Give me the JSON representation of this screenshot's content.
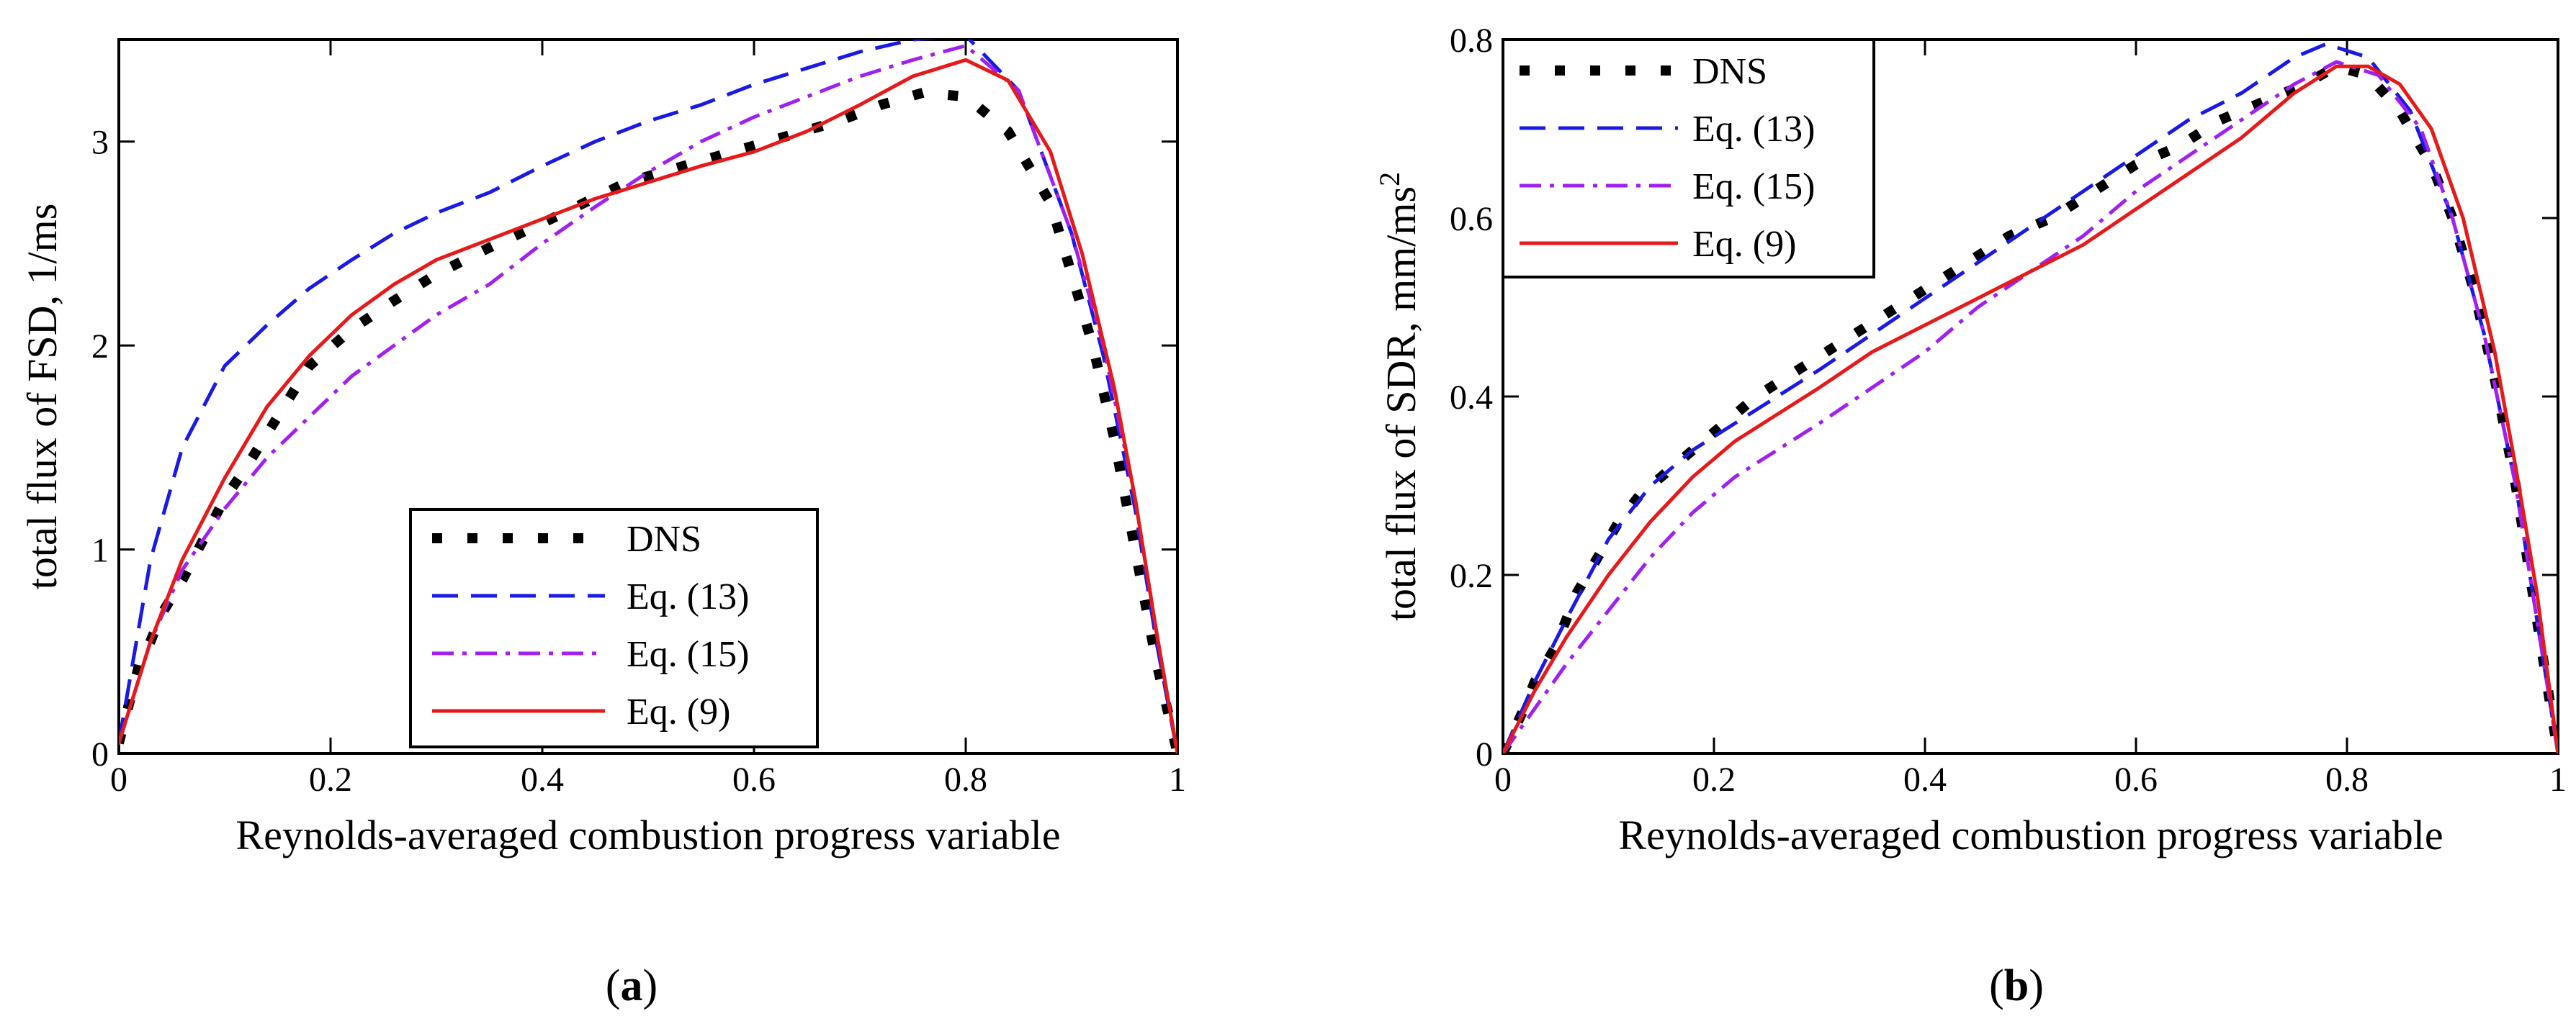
{
  "chart_data": [
    {
      "type": "line",
      "panel_label": "a",
      "xlabel": "Reynolds-averaged combustion progress variable",
      "ylabel": "total flux of FSD, 1/ms",
      "xlim": [
        0,
        1
      ],
      "ylim": [
        0,
        3.5
      ],
      "xticks": [
        0,
        0.2,
        0.4,
        0.6,
        0.8,
        1
      ],
      "xtick_labels": [
        "0",
        "0.2",
        "0.4",
        "0.6",
        "0.8",
        "1"
      ],
      "yticks": [
        0,
        1,
        2,
        3
      ],
      "ytick_labels": [
        "0",
        "1",
        "2",
        "3"
      ],
      "legend_position": "bottom-center",
      "series": [
        {
          "name": "DNS",
          "style": "dotted",
          "color": "#000000",
          "x": [
            0.0,
            0.02,
            0.03,
            0.04,
            0.06,
            0.08,
            0.1,
            0.12,
            0.15,
            0.18,
            0.22,
            0.26,
            0.3,
            0.35,
            0.4,
            0.44,
            0.48,
            0.52,
            0.56,
            0.6,
            0.64,
            0.68,
            0.72,
            0.76,
            0.8,
            0.84,
            0.88,
            0.9,
            0.92,
            0.94,
            0.96,
            0.98,
            1.0
          ],
          "y": [
            0.05,
            0.45,
            0.55,
            0.68,
            0.85,
            1.05,
            1.25,
            1.4,
            1.65,
            1.9,
            2.08,
            2.22,
            2.35,
            2.48,
            2.6,
            2.7,
            2.8,
            2.86,
            2.92,
            2.98,
            3.04,
            3.1,
            3.18,
            3.24,
            3.22,
            3.05,
            2.7,
            2.35,
            2.0,
            1.55,
            1.0,
            0.45,
            0.0
          ]
        },
        {
          "name": "Eq. (13)",
          "style": "dashed",
          "color": "#1a1ae6",
          "x": [
            0.0,
            0.03,
            0.06,
            0.1,
            0.14,
            0.18,
            0.22,
            0.26,
            0.3,
            0.35,
            0.4,
            0.45,
            0.5,
            0.55,
            0.6,
            0.65,
            0.7,
            0.75,
            0.8,
            0.85,
            0.9,
            0.93,
            0.96,
            0.98,
            1.0
          ],
          "y": [
            0.05,
            0.95,
            1.5,
            1.9,
            2.1,
            2.28,
            2.42,
            2.55,
            2.65,
            2.75,
            2.88,
            3.0,
            3.1,
            3.18,
            3.28,
            3.36,
            3.44,
            3.5,
            3.52,
            3.25,
            2.55,
            1.95,
            1.2,
            0.55,
            0.0
          ]
        },
        {
          "name": "Eq. (15)",
          "style": "dashdot",
          "color": "#a020f0",
          "x": [
            0.0,
            0.03,
            0.06,
            0.1,
            0.14,
            0.18,
            0.22,
            0.26,
            0.3,
            0.35,
            0.4,
            0.45,
            0.5,
            0.55,
            0.6,
            0.65,
            0.7,
            0.75,
            0.8,
            0.85,
            0.9,
            0.93,
            0.96,
            0.98,
            1.0
          ],
          "y": [
            0.05,
            0.55,
            0.9,
            1.2,
            1.45,
            1.65,
            1.85,
            2.0,
            2.15,
            2.3,
            2.5,
            2.68,
            2.85,
            3.0,
            3.12,
            3.22,
            3.32,
            3.4,
            3.47,
            3.25,
            2.55,
            2.0,
            1.25,
            0.6,
            0.0
          ]
        },
        {
          "name": "Eq. (9)",
          "style": "solid",
          "color": "#e61a1a",
          "x": [
            0.0,
            0.03,
            0.06,
            0.1,
            0.14,
            0.18,
            0.22,
            0.26,
            0.3,
            0.35,
            0.4,
            0.45,
            0.5,
            0.55,
            0.6,
            0.65,
            0.7,
            0.75,
            0.8,
            0.84,
            0.88,
            0.91,
            0.94,
            0.96,
            0.98,
            1.0
          ],
          "y": [
            0.05,
            0.55,
            0.95,
            1.35,
            1.7,
            1.95,
            2.15,
            2.3,
            2.42,
            2.52,
            2.62,
            2.72,
            2.8,
            2.88,
            2.95,
            3.05,
            3.18,
            3.32,
            3.4,
            3.3,
            2.95,
            2.45,
            1.8,
            1.25,
            0.6,
            0.0
          ]
        }
      ]
    },
    {
      "type": "line",
      "panel_label": "b",
      "xlabel": "Reynolds-averaged combustion progress variable",
      "ylabel": "total flux of SDR, mm/ms",
      "ylabel_superscript": "2",
      "xlim": [
        0,
        1
      ],
      "ylim": [
        0,
        0.8
      ],
      "xticks": [
        0,
        0.2,
        0.4,
        0.6,
        0.8,
        1
      ],
      "xtick_labels": [
        "0",
        "0.2",
        "0.4",
        "0.6",
        "0.8",
        "1"
      ],
      "yticks": [
        0,
        0.2,
        0.4,
        0.6,
        0.8
      ],
      "ytick_labels": [
        "0",
        "0.2",
        "0.4",
        "0.6",
        "0.8"
      ],
      "legend_position": "top-left",
      "series": [
        {
          "name": "DNS",
          "style": "dotted",
          "color": "#000000",
          "x": [
            0.0,
            0.02,
            0.03,
            0.05,
            0.07,
            0.09,
            0.11,
            0.13,
            0.15,
            0.18,
            0.21,
            0.24,
            0.28,
            0.32,
            0.36,
            0.4,
            0.44,
            0.48,
            0.52,
            0.56,
            0.6,
            0.64,
            0.68,
            0.72,
            0.76,
            0.79,
            0.82,
            0.85,
            0.88,
            0.9,
            0.92,
            0.94,
            0.96,
            0.98,
            1.0
          ],
          "y": [
            0.0,
            0.05,
            0.08,
            0.12,
            0.18,
            0.22,
            0.26,
            0.29,
            0.31,
            0.34,
            0.37,
            0.4,
            0.43,
            0.46,
            0.49,
            0.52,
            0.55,
            0.58,
            0.6,
            0.63,
            0.66,
            0.68,
            0.71,
            0.73,
            0.75,
            0.77,
            0.76,
            0.72,
            0.66,
            0.6,
            0.52,
            0.42,
            0.3,
            0.15,
            0.0
          ]
        },
        {
          "name": "Eq. (13)",
          "style": "dashed",
          "color": "#1a1ae6",
          "x": [
            0.0,
            0.03,
            0.06,
            0.1,
            0.14,
            0.18,
            0.22,
            0.26,
            0.3,
            0.35,
            0.4,
            0.45,
            0.5,
            0.55,
            0.6,
            0.65,
            0.7,
            0.75,
            0.78,
            0.82,
            0.86,
            0.9,
            0.93,
            0.96,
            0.98,
            1.0
          ],
          "y": [
            0.0,
            0.08,
            0.15,
            0.24,
            0.3,
            0.34,
            0.37,
            0.4,
            0.43,
            0.47,
            0.51,
            0.55,
            0.59,
            0.63,
            0.67,
            0.71,
            0.74,
            0.78,
            0.795,
            0.78,
            0.72,
            0.6,
            0.47,
            0.3,
            0.15,
            0.0
          ]
        },
        {
          "name": "Eq. (15)",
          "style": "dashdot",
          "color": "#a020f0",
          "x": [
            0.0,
            0.03,
            0.06,
            0.1,
            0.14,
            0.18,
            0.22,
            0.26,
            0.3,
            0.35,
            0.4,
            0.45,
            0.5,
            0.55,
            0.6,
            0.65,
            0.7,
            0.75,
            0.79,
            0.83,
            0.87,
            0.9,
            0.93,
            0.96,
            0.98,
            1.0
          ],
          "y": [
            0.0,
            0.05,
            0.1,
            0.16,
            0.22,
            0.27,
            0.31,
            0.34,
            0.37,
            0.41,
            0.45,
            0.5,
            0.54,
            0.58,
            0.63,
            0.67,
            0.71,
            0.75,
            0.775,
            0.76,
            0.7,
            0.6,
            0.47,
            0.3,
            0.15,
            0.0
          ]
        },
        {
          "name": "Eq. (9)",
          "style": "solid",
          "color": "#e61a1a",
          "x": [
            0.0,
            0.03,
            0.06,
            0.1,
            0.14,
            0.18,
            0.22,
            0.26,
            0.3,
            0.35,
            0.4,
            0.45,
            0.5,
            0.55,
            0.6,
            0.65,
            0.7,
            0.75,
            0.79,
            0.82,
            0.85,
            0.88,
            0.91,
            0.94,
            0.96,
            0.98,
            1.0
          ],
          "y": [
            0.0,
            0.07,
            0.13,
            0.2,
            0.26,
            0.31,
            0.35,
            0.38,
            0.41,
            0.45,
            0.48,
            0.51,
            0.54,
            0.57,
            0.61,
            0.65,
            0.69,
            0.74,
            0.77,
            0.77,
            0.75,
            0.7,
            0.6,
            0.45,
            0.32,
            0.18,
            0.0
          ]
        }
      ]
    }
  ]
}
